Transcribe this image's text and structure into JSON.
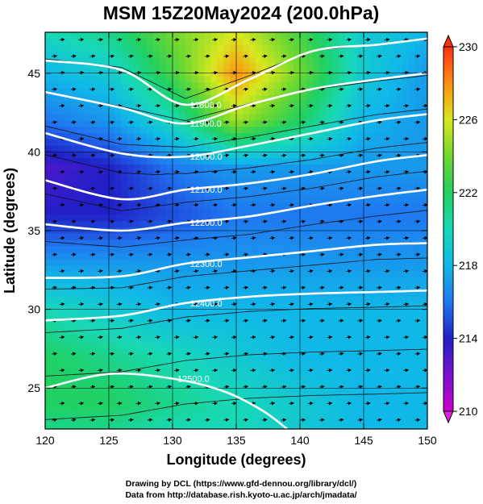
{
  "chart_data": {
    "type": "heatmap",
    "title": "MSM 15Z20May2024 (200.0hPa)",
    "xlabel": "Longitude (degrees)",
    "ylabel": "Latitude  (degrees)",
    "xlim": [
      120,
      150
    ],
    "ylim": [
      22.4,
      47.6
    ],
    "xticks": [
      120,
      125,
      130,
      135,
      140,
      145,
      150
    ],
    "yticks": [
      25,
      30,
      35,
      40,
      45
    ],
    "grid": true,
    "colorbar": {
      "range": [
        210,
        230
      ],
      "ticks": [
        210,
        214,
        218,
        222,
        226,
        230
      ],
      "placement": "right",
      "extend": "both"
    },
    "field_samples": {
      "lon": [
        120,
        125,
        130,
        135,
        140,
        145,
        150
      ],
      "lat": [
        47.6,
        45,
        42,
        39,
        36,
        33,
        30,
        27,
        24,
        22.4
      ],
      "temperature": [
        [
          220,
          221,
          224,
          226,
          223,
          219,
          218
        ],
        [
          218,
          219,
          223,
          228,
          224,
          219,
          217
        ],
        [
          216,
          217,
          220,
          225,
          222,
          218,
          217
        ],
        [
          213,
          214,
          216,
          217,
          217,
          217,
          217
        ],
        [
          214,
          214,
          215,
          216,
          216,
          216,
          216
        ],
        [
          217,
          217,
          217,
          217,
          217,
          217,
          217
        ],
        [
          220,
          219,
          218,
          218,
          218,
          218,
          218
        ],
        [
          222,
          221,
          220,
          219,
          218,
          218,
          218
        ],
        [
          222,
          222,
          221,
          220,
          219,
          218,
          218
        ],
        [
          221,
          221,
          220,
          220,
          219,
          218,
          218
        ]
      ]
    },
    "contours": [
      {
        "label": "11800.0",
        "points": [
          [
            120,
            45.8
          ],
          [
            126,
            45.2
          ],
          [
            131,
            43.0
          ],
          [
            136,
            44.6
          ],
          [
            141,
            46.4
          ],
          [
            146,
            46.8
          ],
          [
            150,
            47.2
          ]
        ]
      },
      {
        "label": "11900.0",
        "points": [
          [
            120,
            43.8
          ],
          [
            126,
            42.8
          ],
          [
            131,
            41.8
          ],
          [
            136,
            43.0
          ],
          [
            141,
            44.0
          ],
          [
            146,
            44.6
          ],
          [
            150,
            45.0
          ]
        ]
      },
      {
        "label": "12000.0",
        "points": [
          [
            120,
            41.2
          ],
          [
            126,
            39.9
          ],
          [
            131,
            39.7
          ],
          [
            136,
            40.4
          ],
          [
            141,
            41.2
          ],
          [
            146,
            42.0
          ],
          [
            150,
            42.4
          ]
        ]
      },
      {
        "label": "12100.0",
        "points": [
          [
            120,
            38.2
          ],
          [
            126,
            37.0
          ],
          [
            131,
            37.6
          ],
          [
            136,
            38.0
          ],
          [
            141,
            38.6
          ],
          [
            146,
            39.4
          ],
          [
            150,
            39.8
          ]
        ]
      },
      {
        "label": "12200.0",
        "points": [
          [
            120,
            35.4
          ],
          [
            126,
            35.0
          ],
          [
            131,
            35.5
          ],
          [
            136,
            35.9
          ],
          [
            141,
            36.6
          ],
          [
            146,
            37.2
          ],
          [
            150,
            37.6
          ]
        ]
      },
      {
        "label": "12300.0",
        "points": [
          [
            120,
            32.0
          ],
          [
            126,
            32.1
          ],
          [
            131,
            32.9
          ],
          [
            136,
            33.3
          ],
          [
            141,
            33.7
          ],
          [
            146,
            34.1
          ],
          [
            150,
            34.2
          ]
        ]
      },
      {
        "label": "12400.0",
        "points": [
          [
            120,
            29.3
          ],
          [
            126,
            29.6
          ],
          [
            131,
            30.4
          ],
          [
            136,
            30.8
          ],
          [
            141,
            31.0
          ],
          [
            146,
            31.1
          ],
          [
            150,
            31.2
          ]
        ]
      },
      {
        "label": "12500.0",
        "points": [
          [
            120,
            25.0
          ],
          [
            125,
            25.9
          ],
          [
            130,
            25.6
          ],
          [
            134,
            24.8
          ],
          [
            137,
            23.6
          ],
          [
            139,
            22.4
          ]
        ]
      }
    ],
    "credits": [
      "Drawing by DCL (https://www.gfd-dennou.org/library/dcl/)",
      "Data from http://database.rish.kyoto-u.ac.jp/arch/jmadata/"
    ]
  }
}
